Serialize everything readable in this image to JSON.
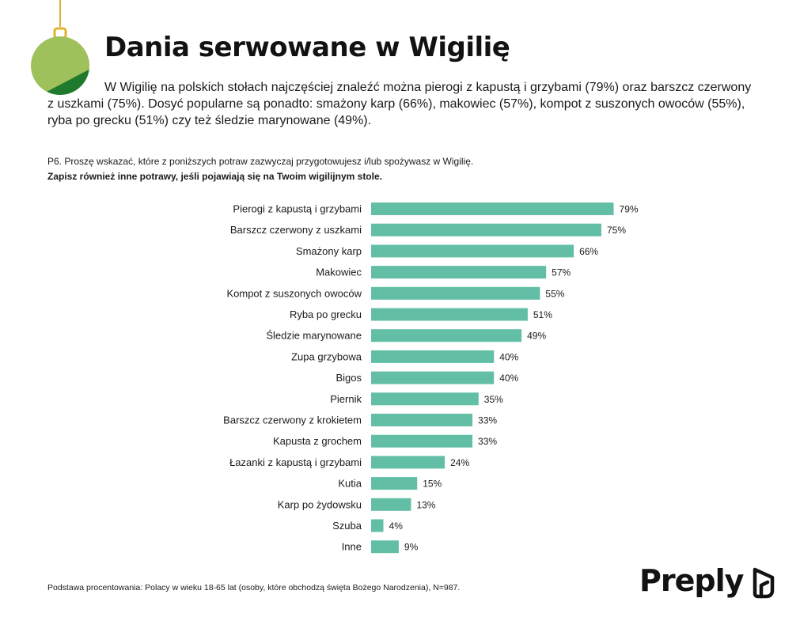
{
  "header": {
    "title": "Dania serwowane w Wigilię",
    "intro": "W Wigilię na polskich stołach najczęściej znaleźć można pierogi  z kapustą i grzybami (79%) oraz barszcz czerwony z uszkami (75%). Dosyć popularne są ponadto: smażony karp (66%), makowiec (57%), kompot z suszonych owoców (55%), ryba po grecku (51%) czy też śledzie marynowane (49%)."
  },
  "question": {
    "line1": "P6. Proszę wskazać, które z poniższych potraw zazwyczaj przygotowujesz i/lub spożywasz w Wigilię.",
    "line2": "Zapisz również inne potrawy,  jeśli pojawiają się na Twoim wigilijnym stole."
  },
  "footnote": "Podstawa procentowania: Polacy w wieku 18-65 lat (osoby, które obchodzą święta Bożego Narodzenia), N=987.",
  "brand": {
    "name": "Preply",
    "color": "#121212"
  },
  "ornament": {
    "icon": "christmas-bauble-icon",
    "light": "#9fc15b",
    "dark": "#1f7a2e",
    "cap": "#e0b12a"
  },
  "chart_data": {
    "type": "bar",
    "orientation": "horizontal",
    "bar_color": "#62bfa6",
    "value_suffix": "%",
    "xlim": [
      0,
      100
    ],
    "grid": false,
    "categories": [
      "Pierogi z kapustą i grzybami",
      "Barszcz czerwony z uszkami",
      "Smażony karp",
      "Makowiec",
      "Kompot z suszonych owoców",
      "Ryba po grecku",
      "Śledzie marynowane",
      "Zupa grzybowa",
      "Bigos",
      "Piernik",
      "Barszcz czerwony z krokietem",
      "Kapusta z grochem",
      "Łazanki z kapustą i grzybami",
      "Kutia",
      "Karp po żydowsku",
      "Szuba",
      "Inne"
    ],
    "values": [
      79,
      75,
      66,
      57,
      55,
      51,
      49,
      40,
      40,
      35,
      33,
      33,
      24,
      15,
      13,
      4,
      9
    ]
  }
}
